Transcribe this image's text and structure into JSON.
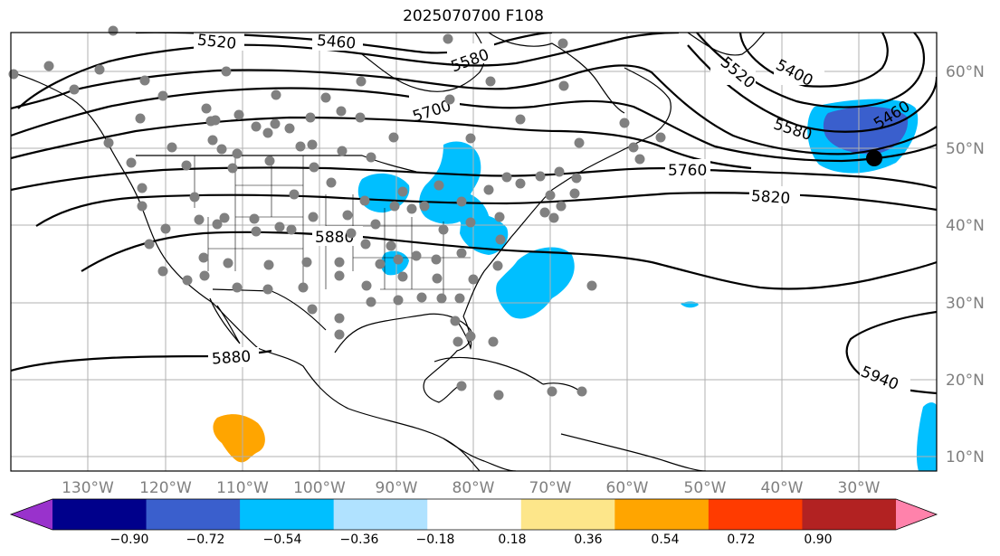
{
  "title": "2025070700 F108",
  "lat_labels": [
    "60°N",
    "50°N",
    "40°N",
    "30°N",
    "20°N",
    "10°N"
  ],
  "lon_labels": [
    "130°W",
    "120°W",
    "110°W",
    "100°W",
    "90°W",
    "80°W",
    "70°W",
    "60°W",
    "50°W",
    "40°W",
    "30°W"
  ],
  "contour_labels": [
    "5520",
    "5460",
    "5580",
    "5700",
    "5400",
    "5520",
    "5460",
    "5580",
    "5760",
    "5820",
    "5880",
    "5880",
    "5940"
  ],
  "colorbar": {
    "ticks": [
      "−0.90",
      "−0.72",
      "−0.54",
      "−0.36",
      "−0.18",
      "0.18",
      "0.36",
      "0.54",
      "0.72",
      "0.90"
    ],
    "colors": [
      "#9932cc",
      "#00008b",
      "#3a5fcd",
      "#00bfff",
      "#b0e2ff",
      "#ffffff",
      "#fde68a",
      "#ffa500",
      "#ff3b00",
      "#b22222",
      "#ff82ab"
    ]
  },
  "colors": {
    "contour": "#000000",
    "grid": "#b0b0b0",
    "station": "#808080",
    "positive_anomaly": "#ffa500",
    "negative_anomaly": "#00bfff",
    "strong_negative": "#3a5fcd"
  }
}
